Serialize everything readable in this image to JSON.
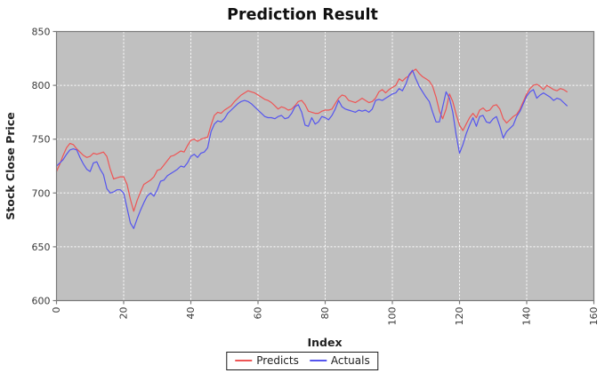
{
  "chart_data": {
    "type": "line",
    "title": "Prediction Result",
    "xlabel": "Index",
    "ylabel": "Stock Close Price",
    "xlim": [
      0,
      160
    ],
    "ylim": [
      600,
      850
    ],
    "x_ticks": [
      0,
      20,
      40,
      60,
      80,
      100,
      120,
      140,
      160
    ],
    "y_ticks": [
      600,
      650,
      700,
      750,
      800,
      850
    ],
    "grid": true,
    "grid_style": "dashed",
    "legend_position": "bottom-center",
    "plot_bg": "#c0c0c0",
    "grid_color": "#ffffff",
    "axis_color": "#7a7a7a",
    "tick_label_color": "#3a3a3a",
    "x_tick_labels_rotated_degrees": -90,
    "series": [
      {
        "name": "Predicts",
        "color": "#ee5555",
        "values": [
          720,
          727,
          735,
          742,
          746,
          745,
          741,
          738,
          735,
          733,
          734,
          737,
          736,
          737,
          738,
          734,
          722,
          713,
          714,
          715,
          715,
          708,
          694,
          683,
          693,
          701,
          708,
          710,
          712,
          715,
          721,
          722,
          726,
          730,
          734,
          735,
          737,
          739,
          738,
          744,
          749,
          750,
          748,
          750,
          751,
          752,
          763,
          772,
          775,
          774,
          777,
          779,
          781,
          785,
          788,
          791,
          793,
          795,
          794,
          793,
          791,
          789,
          787,
          786,
          784,
          781,
          778,
          780,
          779,
          777,
          778,
          781,
          785,
          786,
          782,
          776,
          775,
          774,
          774,
          776,
          777,
          777,
          778,
          783,
          788,
          791,
          790,
          786,
          785,
          784,
          786,
          788,
          786,
          784,
          785,
          788,
          794,
          796,
          793,
          796,
          798,
          800,
          806,
          804,
          807,
          809,
          813,
          815,
          811,
          808,
          806,
          804,
          799,
          789,
          776,
          769,
          778,
          792,
          785,
          773,
          763,
          758,
          764,
          770,
          774,
          770,
          777,
          779,
          776,
          777,
          781,
          782,
          778,
          769,
          765,
          768,
          771,
          773,
          778,
          785,
          792,
          797,
          800,
          801,
          799,
          796,
          800,
          798,
          796,
          795,
          797,
          796,
          794
        ]
      },
      {
        "name": "Actuals",
        "color": "#5555ee",
        "values": [
          725,
          728,
          731,
          736,
          740,
          741,
          740,
          733,
          727,
          722,
          720,
          728,
          729,
          722,
          717,
          704,
          700,
          701,
          703,
          703,
          700,
          686,
          672,
          667,
          676,
          684,
          691,
          697,
          700,
          697,
          703,
          711,
          712,
          716,
          718,
          720,
          722,
          725,
          724,
          728,
          734,
          736,
          733,
          737,
          738,
          742,
          757,
          764,
          767,
          766,
          769,
          774,
          777,
          780,
          783,
          785,
          786,
          785,
          783,
          780,
          777,
          774,
          771,
          770,
          770,
          769,
          771,
          772,
          769,
          770,
          774,
          780,
          782,
          775,
          763,
          762,
          770,
          764,
          766,
          771,
          770,
          768,
          772,
          778,
          786,
          780,
          778,
          777,
          776,
          775,
          777,
          776,
          777,
          775,
          778,
          786,
          787,
          786,
          788,
          790,
          792,
          793,
          797,
          795,
          801,
          810,
          814,
          806,
          799,
          794,
          789,
          785,
          775,
          766,
          766,
          780,
          794,
          788,
          775,
          754,
          737,
          745,
          755,
          763,
          770,
          762,
          771,
          772,
          766,
          765,
          769,
          771,
          762,
          751,
          757,
          760,
          763,
          771,
          776,
          783,
          790,
          794,
          796,
          788,
          791,
          793,
          791,
          789,
          786,
          788,
          787,
          784,
          781
        ]
      }
    ]
  }
}
